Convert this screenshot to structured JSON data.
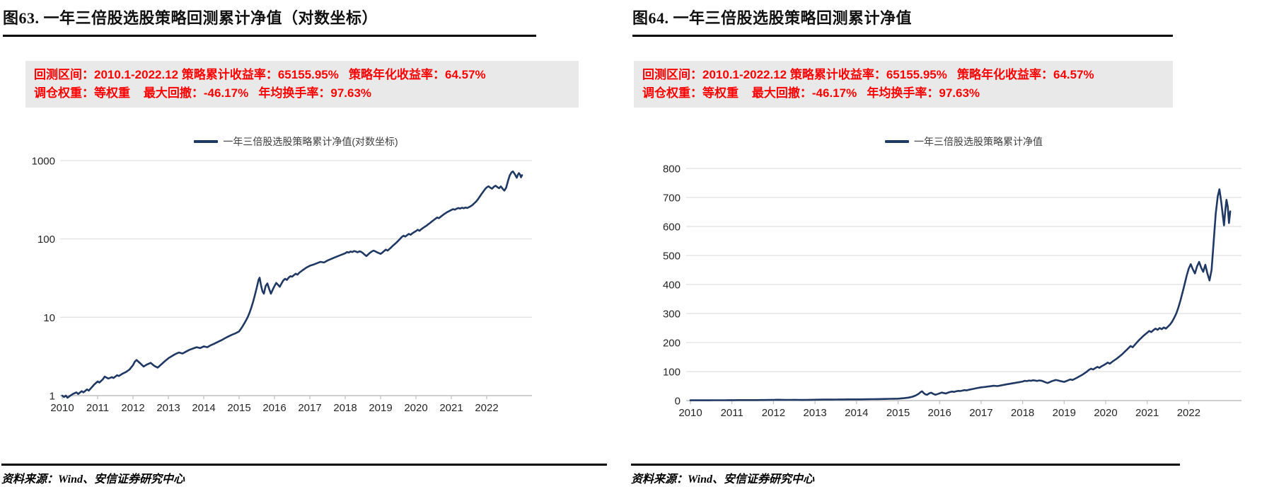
{
  "colors": {
    "accent_navy": "#1f3864",
    "stat_red": "#ff0000",
    "stats_box_bg": "#e9e9e9",
    "grid_line": "#d9d9d9",
    "axis_line": "#bfbfbf",
    "tick_label": "#262626"
  },
  "panels": [
    {
      "title": "图63. 一年三倍股选股策略回测累计净值（对数坐标）",
      "stats_line1": "回测区间：2010.1-2022.12 策略累计收益率：65155.95%   策略年化收益率：64.57%",
      "stats_line2": "调仓权重：等权重    最大回撤：-46.17%   年均换手率：97.63%",
      "legend": "一年三倍股选股策略累计净值(对数坐标)",
      "source": "资料来源：Wind、安信证券研究中心"
    },
    {
      "title": "图64. 一年三倍股选股策略回测累计净值",
      "stats_line1": "回测区间：2010.1-2022.12 策略累计收益率：65155.95%   策略年化收益率：64.57%",
      "stats_line2": "调仓权重：等权重    最大回撤：-46.17%   年均换手率：97.63%",
      "legend": "一年三倍股选股策略累计净值",
      "source": "资料来源：Wind、安信证券研究中心"
    }
  ],
  "chart_data": {
    "type": "line",
    "x_ticks": [
      2010,
      2011,
      2012,
      2013,
      2014,
      2015,
      2016,
      2017,
      2018,
      2019,
      2020,
      2021,
      2022
    ],
    "panels": [
      {
        "yscale": "log",
        "ylim": [
          1,
          1000
        ],
        "yticks": [
          1000,
          100,
          10,
          1
        ],
        "grid": "horizontal",
        "legend_position": "top"
      },
      {
        "yscale": "linear",
        "ylim": [
          0,
          800
        ],
        "yticks": [
          800,
          700,
          600,
          500,
          400,
          300,
          200,
          100,
          0
        ],
        "grid": "horizontal",
        "legend_position": "top"
      }
    ],
    "series": {
      "name": "一年三倍股选股策略累计净值",
      "color": "#1f3864",
      "x_unit": "decimal year",
      "points": [
        [
          2010.0,
          1.0
        ],
        [
          2010.05,
          0.96
        ],
        [
          2010.1,
          1.0
        ],
        [
          2010.15,
          0.94
        ],
        [
          2010.2,
          0.98
        ],
        [
          2010.3,
          1.05
        ],
        [
          2010.4,
          1.1
        ],
        [
          2010.45,
          1.05
        ],
        [
          2010.55,
          1.14
        ],
        [
          2010.6,
          1.1
        ],
        [
          2010.7,
          1.2
        ],
        [
          2010.75,
          1.16
        ],
        [
          2010.85,
          1.3
        ],
        [
          2010.9,
          1.38
        ],
        [
          2011.0,
          1.52
        ],
        [
          2011.05,
          1.47
        ],
        [
          2011.15,
          1.62
        ],
        [
          2011.2,
          1.75
        ],
        [
          2011.3,
          1.65
        ],
        [
          2011.4,
          1.72
        ],
        [
          2011.45,
          1.68
        ],
        [
          2011.55,
          1.82
        ],
        [
          2011.6,
          1.78
        ],
        [
          2011.7,
          1.9
        ],
        [
          2011.8,
          2.0
        ],
        [
          2011.9,
          2.15
        ],
        [
          2012.0,
          2.45
        ],
        [
          2012.05,
          2.7
        ],
        [
          2012.1,
          2.85
        ],
        [
          2012.2,
          2.6
        ],
        [
          2012.3,
          2.35
        ],
        [
          2012.4,
          2.5
        ],
        [
          2012.5,
          2.62
        ],
        [
          2012.6,
          2.4
        ],
        [
          2012.7,
          2.28
        ],
        [
          2012.8,
          2.5
        ],
        [
          2012.9,
          2.75
        ],
        [
          2013.0,
          3.0
        ],
        [
          2013.1,
          3.2
        ],
        [
          2013.2,
          3.4
        ],
        [
          2013.3,
          3.55
        ],
        [
          2013.4,
          3.45
        ],
        [
          2013.5,
          3.65
        ],
        [
          2013.6,
          3.85
        ],
        [
          2013.7,
          4.0
        ],
        [
          2013.8,
          4.15
        ],
        [
          2013.9,
          4.05
        ],
        [
          2014.0,
          4.25
        ],
        [
          2014.1,
          4.15
        ],
        [
          2014.2,
          4.4
        ],
        [
          2014.3,
          4.6
        ],
        [
          2014.4,
          4.85
        ],
        [
          2014.5,
          5.1
        ],
        [
          2014.6,
          5.4
        ],
        [
          2014.7,
          5.7
        ],
        [
          2014.8,
          6.0
        ],
        [
          2014.9,
          6.25
        ],
        [
          2015.0,
          6.6
        ],
        [
          2015.05,
          7.1
        ],
        [
          2015.1,
          7.7
        ],
        [
          2015.15,
          8.4
        ],
        [
          2015.2,
          9.2
        ],
        [
          2015.25,
          10.2
        ],
        [
          2015.3,
          11.6
        ],
        [
          2015.35,
          13.5
        ],
        [
          2015.4,
          16.0
        ],
        [
          2015.45,
          19.5
        ],
        [
          2015.5,
          24.0
        ],
        [
          2015.55,
          30.0
        ],
        [
          2015.58,
          32.0
        ],
        [
          2015.62,
          25.5
        ],
        [
          2015.66,
          21.5
        ],
        [
          2015.7,
          20.0
        ],
        [
          2015.75,
          25.0
        ],
        [
          2015.8,
          27.0
        ],
        [
          2015.85,
          23.0
        ],
        [
          2015.9,
          20.0
        ],
        [
          2015.95,
          22.5
        ],
        [
          2016.0,
          25.0
        ],
        [
          2016.05,
          27.5
        ],
        [
          2016.1,
          26.0
        ],
        [
          2016.15,
          24.5
        ],
        [
          2016.2,
          27.0
        ],
        [
          2016.25,
          29.5
        ],
        [
          2016.3,
          31.0
        ],
        [
          2016.35,
          30.0
        ],
        [
          2016.4,
          32.0
        ],
        [
          2016.45,
          33.5
        ],
        [
          2016.5,
          33.0
        ],
        [
          2016.55,
          34.5
        ],
        [
          2016.6,
          36.0
        ],
        [
          2016.65,
          35.0
        ],
        [
          2016.7,
          37.0
        ],
        [
          2016.75,
          38.5
        ],
        [
          2016.8,
          40.0
        ],
        [
          2016.9,
          43.0
        ],
        [
          2017.0,
          45.5
        ],
        [
          2017.1,
          47.0
        ],
        [
          2017.2,
          49.0
        ],
        [
          2017.3,
          51.0
        ],
        [
          2017.4,
          50.0
        ],
        [
          2017.5,
          53.0
        ],
        [
          2017.6,
          55.5
        ],
        [
          2017.7,
          58.0
        ],
        [
          2017.8,
          60.5
        ],
        [
          2017.9,
          63.0
        ],
        [
          2018.0,
          65.5
        ],
        [
          2018.05,
          68.0
        ],
        [
          2018.1,
          67.0
        ],
        [
          2018.15,
          69.0
        ],
        [
          2018.2,
          68.0
        ],
        [
          2018.25,
          70.0
        ],
        [
          2018.3,
          69.0
        ],
        [
          2018.35,
          67.5
        ],
        [
          2018.4,
          69.5
        ],
        [
          2018.45,
          68.5
        ],
        [
          2018.5,
          66.0
        ],
        [
          2018.55,
          63.0
        ],
        [
          2018.6,
          60.5
        ],
        [
          2018.65,
          63.5
        ],
        [
          2018.7,
          66.5
        ],
        [
          2018.75,
          69.0
        ],
        [
          2018.8,
          71.0
        ],
        [
          2018.85,
          69.5
        ],
        [
          2018.9,
          67.5
        ],
        [
          2019.0,
          64.5
        ],
        [
          2019.05,
          67.0
        ],
        [
          2019.1,
          70.0
        ],
        [
          2019.15,
          73.0
        ],
        [
          2019.2,
          71.0
        ],
        [
          2019.25,
          74.5
        ],
        [
          2019.3,
          78.0
        ],
        [
          2019.35,
          82.0
        ],
        [
          2019.4,
          86.0
        ],
        [
          2019.45,
          90.0
        ],
        [
          2019.5,
          95.0
        ],
        [
          2019.55,
          100.0
        ],
        [
          2019.6,
          106.0
        ],
        [
          2019.65,
          110.0
        ],
        [
          2019.7,
          107.0
        ],
        [
          2019.75,
          112.0
        ],
        [
          2019.8,
          116.0
        ],
        [
          2019.85,
          113.0
        ],
        [
          2019.9,
          118.0
        ],
        [
          2019.95,
          122.0
        ],
        [
          2020.0,
          126.0
        ],
        [
          2020.05,
          131.0
        ],
        [
          2020.1,
          127.0
        ],
        [
          2020.15,
          133.0
        ],
        [
          2020.2,
          138.0
        ],
        [
          2020.25,
          143.0
        ],
        [
          2020.3,
          148.0
        ],
        [
          2020.35,
          154.0
        ],
        [
          2020.4,
          160.0
        ],
        [
          2020.45,
          167.0
        ],
        [
          2020.5,
          174.0
        ],
        [
          2020.55,
          181.0
        ],
        [
          2020.6,
          188.0
        ],
        [
          2020.65,
          184.0
        ],
        [
          2020.7,
          192.0
        ],
        [
          2020.75,
          200.0
        ],
        [
          2020.8,
          208.0
        ],
        [
          2020.85,
          215.0
        ],
        [
          2020.9,
          222.0
        ],
        [
          2020.95,
          228.0
        ],
        [
          2021.0,
          234.0
        ],
        [
          2021.05,
          240.0
        ],
        [
          2021.1,
          236.0
        ],
        [
          2021.15,
          243.0
        ],
        [
          2021.2,
          248.0
        ],
        [
          2021.25,
          244.0
        ],
        [
          2021.3,
          250.0
        ],
        [
          2021.35,
          246.0
        ],
        [
          2021.4,
          252.0
        ],
        [
          2021.45,
          248.0
        ],
        [
          2021.5,
          255.0
        ],
        [
          2021.55,
          262.0
        ],
        [
          2021.6,
          272.0
        ],
        [
          2021.65,
          285.0
        ],
        [
          2021.7,
          300.0
        ],
        [
          2021.75,
          320.0
        ],
        [
          2021.8,
          345.0
        ],
        [
          2021.85,
          372.0
        ],
        [
          2021.9,
          400.0
        ],
        [
          2021.95,
          430.0
        ],
        [
          2022.0,
          455.0
        ],
        [
          2022.05,
          470.0
        ],
        [
          2022.1,
          452.0
        ],
        [
          2022.15,
          438.0
        ],
        [
          2022.2,
          462.0
        ],
        [
          2022.25,
          478.0
        ],
        [
          2022.3,
          458.0
        ],
        [
          2022.35,
          444.0
        ],
        [
          2022.4,
          468.0
        ],
        [
          2022.45,
          438.0
        ],
        [
          2022.5,
          414.0
        ],
        [
          2022.55,
          450.0
        ],
        [
          2022.6,
          545.0
        ],
        [
          2022.65,
          645.0
        ],
        [
          2022.7,
          705.0
        ],
        [
          2022.74,
          728.0
        ],
        [
          2022.78,
          688.0
        ],
        [
          2022.82,
          640.0
        ],
        [
          2022.85,
          604.0
        ],
        [
          2022.88,
          655.0
        ],
        [
          2022.91,
          692.0
        ],
        [
          2022.94,
          668.0
        ],
        [
          2022.97,
          612.0
        ],
        [
          2023.0,
          652.0
        ]
      ]
    }
  }
}
